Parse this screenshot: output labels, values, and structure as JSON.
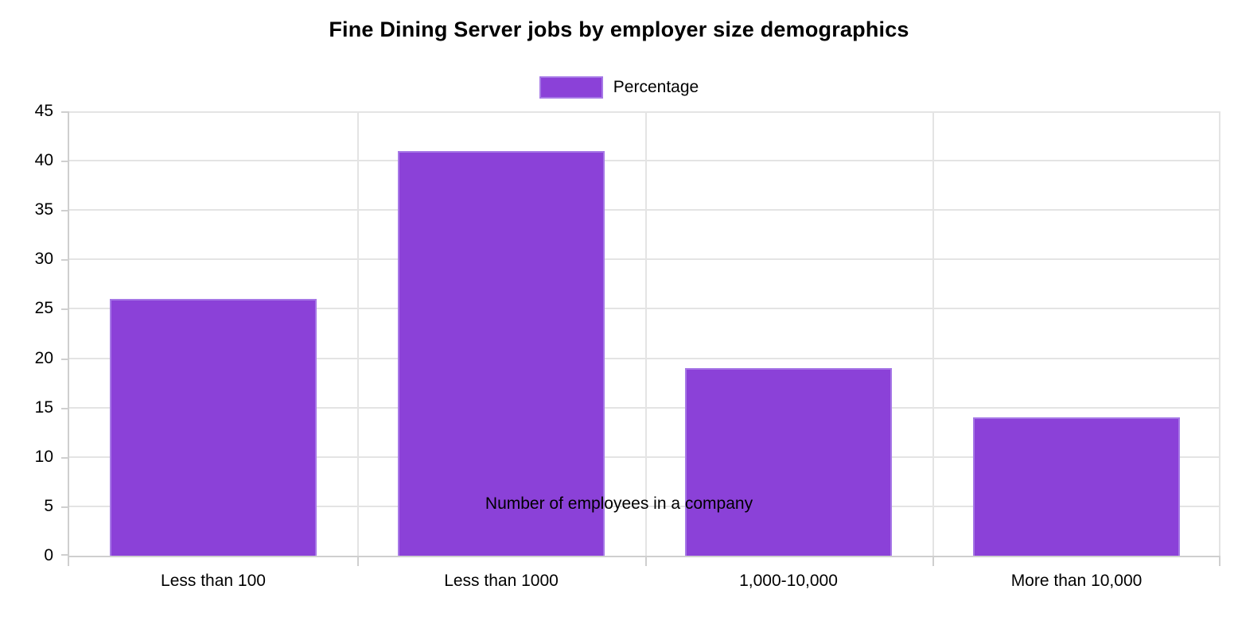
{
  "chart_data": {
    "type": "bar",
    "title": "Fine Dining Server jobs by employer size demographics",
    "legend": {
      "label": "Percentage",
      "position": "top"
    },
    "categories": [
      "Less than 100",
      "Less than 1000",
      "1,000-10,000",
      "More than 10,000"
    ],
    "values": [
      26,
      41,
      19,
      14
    ],
    "xlabel": "Number of employees in a company",
    "ylabel": "",
    "ylim": [
      0,
      45
    ],
    "ytick_step": 5,
    "yticks": [
      0,
      5,
      10,
      15,
      20,
      25,
      30,
      35,
      40,
      45
    ],
    "grid": true,
    "legend_position": "top",
    "colors": {
      "bar_fill": "#8b41d8",
      "bar_border": "#a678e6",
      "gridline": "#e4e4e4",
      "axis_line": "#cfcfcf",
      "text": "#000000",
      "background": "#ffffff"
    }
  }
}
